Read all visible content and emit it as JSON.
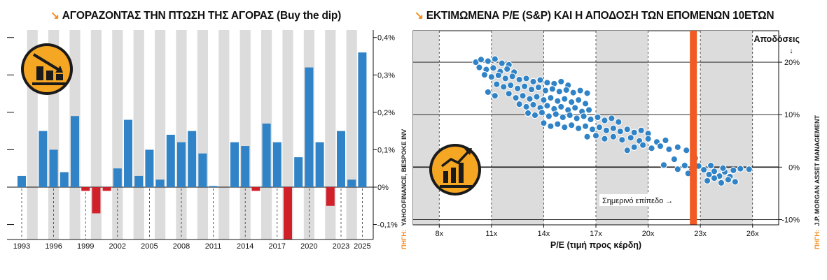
{
  "titles": {
    "left_mark": "↘",
    "left": "ΑΓΟΡΑΖΟΝΤΑΣ ΤΗΝ ΠΤΩΣΗ ΤΗΣ ΑΓΟΡΑΣ (Buy the dip)",
    "right_mark": "↘",
    "right": "ΕΚΤΙΜΩΜΕΝΑ P/E (S&P) ΚΑΙ Η ΑΠΟΔΟΣΗ ΤΩΝ ΕΠΟΜΕΝΩΝ 10ΕΤΩΝ"
  },
  "sources": {
    "left_prefix": "ΠΗΓΗ:",
    "left_text": "YAHOOFINANCE, BESPOKE INV",
    "right_prefix": "ΠΗΓΗ:",
    "right_text": "J.P. MORGAN ASSET MANAGEMENT"
  },
  "colors": {
    "positive_bar": "#2f83c6",
    "negative_bar": "#d0202a",
    "stripe": "#dcdcdc",
    "accent": "#f28c1e",
    "current_line": "#f15a22",
    "dot_fill": "#2f83c6",
    "icon_bg": "#f5a623"
  },
  "chart_data": [
    {
      "type": "bar",
      "title": "ΑΓΟΡΑΖΟΝΤΑΣ ΤΗΝ ΠΤΩΣΗ ΤΗΣ ΑΓΟΡΑΣ (Buy the dip)",
      "xlabel": "",
      "ylabel": "",
      "ylim": [
        -0.14,
        0.42
      ],
      "y_ticks": [
        0.4,
        0.3,
        0.2,
        0.1,
        0,
        -0.1
      ],
      "y_tick_labels": [
        "0,4%",
        "0,3%",
        "0,2%",
        "0,1%",
        "0%",
        "-0,1%"
      ],
      "x_tick_labels": [
        "1993",
        "1996",
        "1999",
        "2002",
        "2005",
        "2008",
        "2011",
        "2014",
        "2017",
        "2020",
        "2023",
        "2025"
      ],
      "grid": false,
      "categories": [
        1993,
        1994,
        1995,
        1996,
        1997,
        1998,
        1999,
        2000,
        2001,
        2002,
        2003,
        2004,
        2005,
        2006,
        2007,
        2008,
        2009,
        2010,
        2011,
        2012,
        2013,
        2014,
        2015,
        2016,
        2017,
        2018,
        2019,
        2020,
        2021,
        2022,
        2023,
        2024,
        2025
      ],
      "values": [
        0.03,
        0,
        0.15,
        0.1,
        0.04,
        0.19,
        -0.01,
        -0.07,
        -0.01,
        0.05,
        0.18,
        0.03,
        0.1,
        0.02,
        0.14,
        0.12,
        0.15,
        0.09,
        0.003,
        0,
        0.12,
        0.11,
        -0.01,
        0.17,
        0.12,
        -0.14,
        0.08,
        0.32,
        0.12,
        -0.05,
        0.15,
        0.02,
        0.36
      ]
    },
    {
      "type": "scatter",
      "title": "ΕΚΤΙΜΩΜΕΝΑ P/E (S&P) ΚΑΙ Η ΑΠΟΔΟΣΗ ΤΩΝ ΕΠΟΜΕΝΩΝ 10ΕΤΩΝ",
      "xlabel": "P/E (τιμή προς κέρδη)",
      "ylabel": "Αποδόσεις",
      "xlim": [
        6.5,
        27.5
      ],
      "ylim": [
        -11,
        26
      ],
      "x_ticks": [
        8,
        11,
        14,
        17,
        20,
        23,
        26
      ],
      "x_tick_labels": [
        "8x",
        "11x",
        "14x",
        "17x",
        "20x",
        "23x",
        "26x"
      ],
      "y_ticks": [
        20,
        10,
        0,
        -10
      ],
      "y_tick_labels": [
        "20%",
        "10%",
        "0%",
        "-10%"
      ],
      "grid": true,
      "current_level": 22.6,
      "current_level_label": "Σημερινό επίπεδο →",
      "points": [
        [
          10.1,
          20
        ],
        [
          10.4,
          20.5
        ],
        [
          10.8,
          20.2
        ],
        [
          11.2,
          20.6
        ],
        [
          11.6,
          19.8
        ],
        [
          12,
          19.5
        ],
        [
          10.3,
          19
        ],
        [
          10.7,
          18.6
        ],
        [
          11.1,
          18.9
        ],
        [
          11.5,
          18.2
        ],
        [
          11.9,
          18.7
        ],
        [
          12.3,
          18.1
        ],
        [
          10.6,
          17.6
        ],
        [
          11,
          17.2
        ],
        [
          11.4,
          17.5
        ],
        [
          11.8,
          16.9
        ],
        [
          12.2,
          17.3
        ],
        [
          12.6,
          16.7
        ],
        [
          13,
          16.9
        ],
        [
          13.4,
          16.3
        ],
        [
          13.8,
          16.6
        ],
        [
          14.2,
          16.1
        ],
        [
          14.6,
          15.9
        ],
        [
          15,
          16.3
        ],
        [
          15.4,
          15.6
        ],
        [
          11.3,
          15.8
        ],
        [
          11.7,
          15.3
        ],
        [
          12.1,
          15.6
        ],
        [
          12.5,
          15
        ],
        [
          12.9,
          15.4
        ],
        [
          13.3,
          14.8
        ],
        [
          13.7,
          15.2
        ],
        [
          14.1,
          14.6
        ],
        [
          14.5,
          14.9
        ],
        [
          14.9,
          14.4
        ],
        [
          15.3,
          14.7
        ],
        [
          15.7,
          14.2
        ],
        [
          16.1,
          14.6
        ],
        [
          16.5,
          14.1
        ],
        [
          10.8,
          14.3
        ],
        [
          11.2,
          13.6
        ],
        [
          12,
          14
        ],
        [
          12.4,
          13.2
        ],
        [
          12.8,
          13.6
        ],
        [
          13.2,
          13
        ],
        [
          13.6,
          13.4
        ],
        [
          14,
          12.8
        ],
        [
          14.4,
          13.2
        ],
        [
          14.8,
          12.6
        ],
        [
          15.2,
          13
        ],
        [
          15.6,
          12.4
        ],
        [
          16,
          12.8
        ],
        [
          16.4,
          12.1
        ],
        [
          12.6,
          12
        ],
        [
          13,
          11.5
        ],
        [
          13.4,
          11.9
        ],
        [
          13.8,
          11.3
        ],
        [
          14.2,
          11.7
        ],
        [
          14.6,
          11.1
        ],
        [
          15,
          11.5
        ],
        [
          15.4,
          10.9
        ],
        [
          15.8,
          11.3
        ],
        [
          16.2,
          10.6
        ],
        [
          16.6,
          10.9
        ],
        [
          13.1,
          10.3
        ],
        [
          13.5,
          9.9
        ],
        [
          13.9,
          10.4
        ],
        [
          14.3,
          9.7
        ],
        [
          14.7,
          10.1
        ],
        [
          15.1,
          9.5
        ],
        [
          15.5,
          9.9
        ],
        [
          15.9,
          9.3
        ],
        [
          16.3,
          9.7
        ],
        [
          16.7,
          9.1
        ],
        [
          17.1,
          9.5
        ],
        [
          17.5,
          8.9
        ],
        [
          17.9,
          9.3
        ],
        [
          18.3,
          8.6
        ],
        [
          14,
          8.4
        ],
        [
          14.4,
          7.8
        ],
        [
          14.8,
          8.2
        ],
        [
          15.2,
          7.6
        ],
        [
          15.6,
          8
        ],
        [
          16,
          7.4
        ],
        [
          16.4,
          7.8
        ],
        [
          16.8,
          7.2
        ],
        [
          17.2,
          7.6
        ],
        [
          17.6,
          7
        ],
        [
          18,
          7.4
        ],
        [
          18.4,
          6.8
        ],
        [
          18.8,
          7.2
        ],
        [
          19.2,
          6.6
        ],
        [
          19.6,
          7
        ],
        [
          20,
          6.4
        ],
        [
          16.5,
          5.8
        ],
        [
          17,
          6
        ],
        [
          17.5,
          5.4
        ],
        [
          18,
          5.8
        ],
        [
          18.5,
          5.2
        ],
        [
          19,
          5.6
        ],
        [
          19.5,
          5
        ],
        [
          20,
          5.4
        ],
        [
          20.5,
          4.8
        ],
        [
          21,
          5.1
        ],
        [
          19.2,
          3.8
        ],
        [
          19.7,
          4.2
        ],
        [
          20.2,
          3.6
        ],
        [
          20.7,
          4
        ],
        [
          21.2,
          3.4
        ],
        [
          21.7,
          3.8
        ],
        [
          22.2,
          3.2
        ],
        [
          18.8,
          3.2
        ],
        [
          21.5,
          1.5
        ],
        [
          22.7,
          1.7
        ],
        [
          20.9,
          0.4
        ],
        [
          21.7,
          -0.4
        ],
        [
          22.1,
          0.3
        ],
        [
          22.5,
          -0.6
        ],
        [
          22.9,
          0.2
        ],
        [
          23.2,
          -0.5
        ],
        [
          23.5,
          -1.4
        ],
        [
          23.8,
          -0.8
        ],
        [
          24.1,
          -1.7
        ],
        [
          24.4,
          -0.9
        ],
        [
          24.7,
          -1.8
        ],
        [
          23.4,
          -2.6
        ],
        [
          23.8,
          -2.1
        ],
        [
          24.2,
          -3
        ],
        [
          24.6,
          -2.4
        ],
        [
          25,
          -2.8
        ],
        [
          23.6,
          0.3
        ],
        [
          24.3,
          -0.2
        ],
        [
          24.9,
          -0.6
        ],
        [
          25.3,
          -0.3
        ],
        [
          25.8,
          -0.4
        ],
        [
          22.3,
          -1.2
        ]
      ]
    }
  ]
}
